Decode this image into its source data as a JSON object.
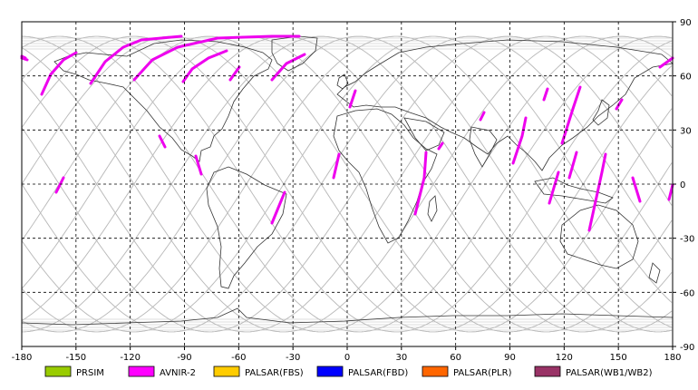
{
  "map": {
    "x_ticks": [
      "-180",
      "-150",
      "-120",
      "-90",
      "-60",
      "-30",
      "0",
      "30",
      "60",
      "90",
      "120",
      "150",
      "180"
    ],
    "y_ticks": [
      "90",
      "60",
      "30",
      "0",
      "-30",
      "-60",
      "-90"
    ]
  },
  "legend": [
    {
      "label": "PRSIM",
      "color": "#99cc00"
    },
    {
      "label": "AVNIR-2",
      "color": "#ff00ff"
    },
    {
      "label": "PALSAR(FBS)",
      "color": "#ffcc00"
    },
    {
      "label": "PALSAR(FBD)",
      "color": "#0000ff"
    },
    {
      "label": "PALSAR(PLR)",
      "color": "#ff6600"
    },
    {
      "label": "PALSAR(WB1/WB2)",
      "color": "#993366"
    }
  ],
  "colors": {
    "orbit_tracks": "#bbbbbb",
    "grid": "#000000",
    "coastline": "#333333",
    "avnir_segments": "#ee00ee"
  }
}
